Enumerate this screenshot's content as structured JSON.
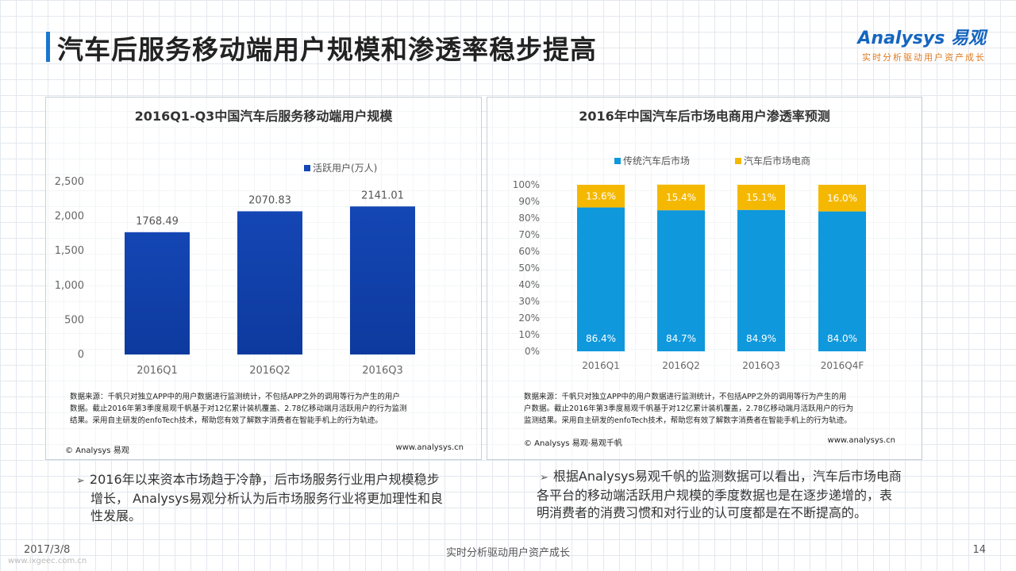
{
  "page": {
    "title": "汽车后服务移动端用户规模和渗透率稳步提高",
    "logo_main": "Analysys 易观",
    "logo_sub": "实时分析驱动用户资产成长",
    "date": "2017/3/8",
    "footer_center": "实时分析驱动用户资产成长",
    "page_number": "14",
    "url": "www.ixgeec.com.cn"
  },
  "colors": {
    "bar_dark": "#1446b4",
    "traditional": "#0f98dc",
    "ecommerce": "#f5b800"
  },
  "left_panel": {
    "source": [
      "数据来源：千帆只对独立APP中的用户数据进行监测统计，不包括APP之外的调用等行为产生的用户",
      "数据。截止2016年第3季度易观千帆基于对12亿累计装机覆盖、2.78亿移动端月活跃用户的行为监测",
      "结果。采用自主研发的enfoTech技术，帮助您有效了解数字消费者在智能手机上的行为轨迹。"
    ],
    "copyright": "© Analysys 易观",
    "website": "www.analysys.cn"
  },
  "right_panel": {
    "source": [
      "数据来源：千帆只对独立APP中的用户数据进行监测统计，不包括APP之外的调用等行为产生的用",
      "户数据。截止2016年第3季度易观千帆基于对12亿累计装机覆盖，2.78亿移动端月活跃用户的行为",
      "监测结果。采用自主研发的enfoTech技术，帮助您有效了解数字消费者在智能手机上的行为轨迹。"
    ],
    "copyright": "© Analysys 易观·易观千帆",
    "website": "www.analysys.cn"
  },
  "bullets": {
    "left": [
      "2016年以来资本市场趋于冷静，后市场服务行业用户规模稳步",
      "增长， Analysys易观分析认为后市场服务行业将更加理性和良",
      "性发展。"
    ],
    "right": [
      "根据Analysys易观千帆的监测数据可以看出，汽车后市场电商",
      "各平台的移动端活跃用户规模的季度数据也是在逐步递增的，表",
      "明消费者的消费习惯和对行业的认可度都是在不断提高的。"
    ]
  },
  "chart_data": [
    {
      "type": "bar",
      "title": "2016Q1-Q3中国汽车后服务移动端用户规模",
      "categories": [
        "2016Q1",
        "2016Q2",
        "2016Q3"
      ],
      "series": [
        {
          "name": "活跃用户(万人)",
          "values": [
            1768.49,
            2070.83,
            2141.01
          ]
        }
      ],
      "value_labels": [
        "1768.49",
        "2070.83",
        "2141.01"
      ],
      "yticks": [
        "0",
        "500",
        "1,000",
        "1,500",
        "2,000",
        "2,500"
      ],
      "ylim": [
        0,
        2500
      ],
      "legend": "top-center",
      "grid": false
    },
    {
      "type": "bar",
      "stacked": true,
      "title": "2016年中国汽车后市场电商用户渗透率预测",
      "categories": [
        "2016Q1",
        "2016Q2",
        "2016Q3",
        "2016Q4F"
      ],
      "series": [
        {
          "name": "传统汽车后市场",
          "values": [
            86.4,
            84.7,
            84.9,
            84.0
          ],
          "labels": [
            "86.4%",
            "84.7%",
            "84.9%",
            "84.0%"
          ]
        },
        {
          "name": "汽车后市场电商",
          "values": [
            13.6,
            15.4,
            15.1,
            16.0
          ],
          "labels": [
            "13.6%",
            "15.4%",
            "15.1%",
            "16.0%"
          ]
        }
      ],
      "yticks": [
        "0%",
        "10%",
        "20%",
        "30%",
        "40%",
        "50%",
        "60%",
        "70%",
        "80%",
        "90%",
        "100%"
      ],
      "ylim": [
        0,
        100
      ],
      "legend": "top",
      "grid": false
    }
  ]
}
